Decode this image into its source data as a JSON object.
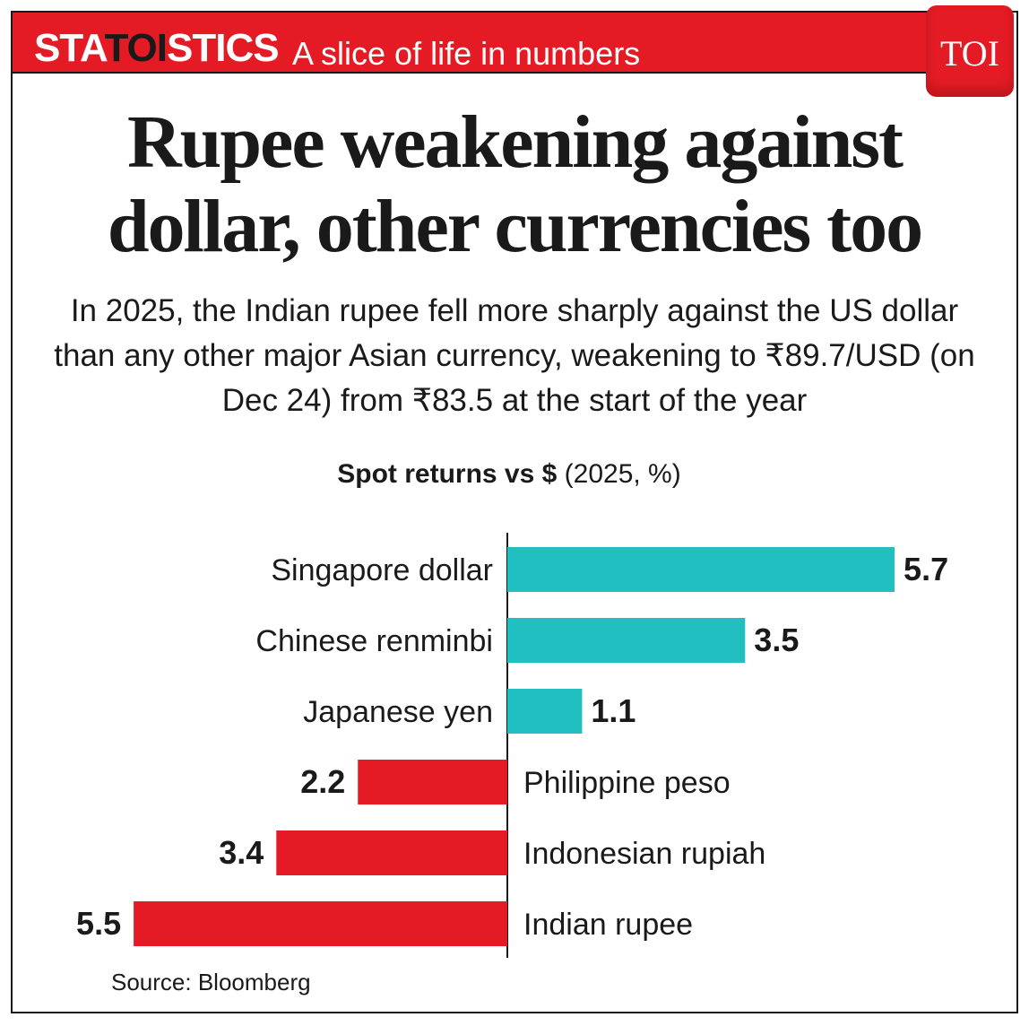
{
  "banner": {
    "brand_left": "STA",
    "brand_mid": "TOI",
    "brand_right": "STICS",
    "tagline": "A slice of life in numbers",
    "logo_text": "TOI"
  },
  "headline": "Rupee weakening against dollar, other currencies too",
  "standfirst": "In 2025, the Indian rupee fell more sharply against the US dollar than any other major Asian currency, weakening to ₹89.7/USD (on Dec 24) from ₹83.5 at the start of the year",
  "chart_data": {
    "type": "bar",
    "orientation": "horizontal",
    "title_bold": "Spot returns vs $",
    "title_rest": " (2025, %)",
    "categories": [
      "Singapore dollar",
      "Chinese renminbi",
      "Japanese yen",
      "Philippine peso",
      "Indonesian rupiah",
      "Indian rupee"
    ],
    "values": [
      5.7,
      3.5,
      1.1,
      -2.2,
      -3.4,
      -5.5
    ],
    "value_labels": [
      "5.7",
      "3.5",
      "1.1",
      "2.2",
      "3.4",
      "5.5"
    ],
    "xlim": [
      -5.5,
      5.7
    ],
    "colors": {
      "positive": "#22bfc0",
      "negative": "#e41b24"
    },
    "grid": false,
    "legend": "none"
  },
  "source": "Source: Bloomberg"
}
